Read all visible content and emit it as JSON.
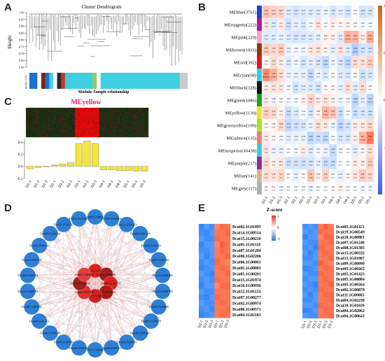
{
  "panel_labels": {
    "a": "A",
    "b": "B",
    "c": "C",
    "d": "D",
    "e": "E"
  },
  "panel_a": {
    "title": "Cluster Dendrogram",
    "ylabel": "Height",
    "yticks": [
      "1.00",
      "0.95",
      "0.90",
      "0.85",
      "0.80",
      "0.75",
      "0.70",
      "0.65",
      "0.60"
    ],
    "row_label": "Module colors",
    "xlabel": "Module-Sample relationship",
    "color_bar": [
      "#1e6fd0",
      "#1e6fd0",
      "#ffffff",
      "#7a2a12",
      "#1e6fd0",
      "#4bd0e8",
      "#ffffff",
      "#2b2b2b",
      "#c43a2a",
      "#3fcfe0",
      "#3fcfe0",
      "#3fcfe0",
      "#3fcfe0",
      "#3fcfe0",
      "#3fcfe0",
      "#3fcfe0",
      "#8ecf5a",
      "#ffffff",
      "#3fcfe0",
      "#3fcfe0",
      "#3fcfe0",
      "#3fcfe0",
      "#3fcfe0",
      "#3fcfe0",
      "#3fcfe0",
      "#3fcfe0",
      "#3fcfe0",
      "#3fcfe0",
      "#3fcfe0",
      "#3fcfe0",
      "#3fcfe0",
      "#3fcfe0",
      "#3fcfe0",
      "#3fcfe0",
      "#3fcfe0",
      "#3fcfe0",
      "#3fcfe0",
      "#3fcfe0",
      "#cccccc",
      "#cccccc"
    ]
  },
  "panel_b": {
    "modules": [
      "MEblue(3761)",
      "MEmagenta(222)",
      "MEpink(229)",
      "MEbrown(1931)",
      "MEred(392)",
      "MEcyan(68)",
      "MEblack(328)",
      "MEgreen(1086)",
      "MEyellow(1130)",
      "MEgreenyellow(199)",
      "MEsalmon(135)",
      "MEturquoise(10438)",
      "MEpurple(217)",
      "MEtan(141)",
      "MEgrey(117)"
    ],
    "module_colors": [
      "#1f3fd0",
      "#b2189a",
      "#f2a6d0",
      "#8a3a10",
      "#e01a1a",
      "#28d2e6",
      "#111111",
      "#1fa11f",
      "#f0e428",
      "#a6e622",
      "#f08070",
      "#40c8d8",
      "#8a2ea0",
      "#d8b48a",
      "#b0b0b0"
    ],
    "samples": [
      "D1-1",
      "D1-2",
      "D1-3",
      "D2-1",
      "D2-2",
      "D2-3",
      "D3-1",
      "D3-2",
      "D3-3",
      "D4-1",
      "D4-2",
      "D4-3",
      "D5-1",
      "D5-2",
      "D5-3"
    ],
    "scale_ticks": [
      "1",
      "0.5",
      "0",
      "-0.5",
      "-1"
    ],
    "values": [
      [
        0.39,
        0.31,
        0.27,
        -0.16,
        -0.22,
        -0.17,
        -0.17,
        -0.17,
        -0.09,
        -0.2,
        -0.12,
        -0.22,
        -0.03,
        -0.22,
        -0.2
      ],
      [
        0.16,
        -0.18,
        0.11,
        -0.23,
        -0.13,
        -0.17,
        -0.04,
        0.16,
        -0.03,
        0.11,
        0.07,
        0.09,
        -0.03,
        -0.05,
        -0.06
      ],
      [
        -0.17,
        -0.17,
        -0.13,
        -0.17,
        -0.22,
        -0.2,
        -0.17,
        -0.13,
        0.09,
        0.1,
        -0.17,
        0.5,
        0.46,
        0.1,
        0.5
      ],
      [
        0.33,
        0.24,
        0.33,
        -0.1,
        -0.06,
        -0.07,
        0.14,
        0.18,
        0.05,
        -0.14,
        0.18,
        -0.16,
        -0.4,
        -0.22,
        -0.23
      ],
      [
        -0.02,
        0.22,
        0.1,
        -0.16,
        -0.08,
        -0.21,
        -0.13,
        -0.2,
        -0.32,
        -0.07,
        -0.2,
        -0.32,
        0.22,
        0.18,
        0.31
      ],
      [
        0.74,
        0.49,
        0.2,
        -0.1,
        -0.12,
        -0.12,
        -0.31,
        -0.09,
        -0.17,
        0.02,
        -0.17,
        -0.18,
        0.04,
        -0.25,
        -0.18
      ],
      [
        0.12,
        0.17,
        0.13,
        -0.04,
        -0.21,
        -0.14,
        -0.17,
        -0.22,
        0.04,
        0.02,
        -0.12,
        0.2,
        -0.15,
        0.21,
        -0.02
      ],
      [
        0.12,
        -0.09,
        0.04,
        -0.07,
        -0.04,
        0.09,
        0.29,
        0.12,
        0.18,
        0.08,
        -0.07,
        -0.05,
        -0.34,
        -0.1,
        -0.34
      ],
      [
        0.3,
        0.24,
        0.07,
        -0.26,
        -0.16,
        -0.04,
        -0.2,
        0.08,
        0.48,
        0.36,
        -0.25,
        -0.03,
        -0.25,
        -0.2,
        -0.24
      ],
      [
        0.05,
        0.08,
        0.24,
        -0.31,
        -0.24,
        -0.19,
        -0.11,
        0.22,
        0.13,
        -0.08,
        -0.32,
        -0.2,
        0.13,
        0.13,
        0.24
      ],
      [
        0.13,
        0.05,
        -0.05,
        -0.12,
        -0.1,
        -0.1,
        -0.33,
        -0.25,
        -0.31,
        -0.01,
        -0.19,
        -0.18,
        0.11,
        0.47,
        0.82
      ],
      [
        0.17,
        -0.1,
        -0.09,
        -0.01,
        -0.05,
        0.12,
        -0.16,
        -0.05,
        -0.09,
        -0.29,
        -0.04,
        -0.01,
        -0.15,
        0.07,
        0.21
      ],
      [
        0.22,
        0.1,
        0.15,
        -0.22,
        -0.21,
        -0.23,
        -0.22,
        -0.1,
        -0.26,
        -0.26,
        0.01,
        -0.01,
        0.12,
        0.08,
        0.31
      ],
      [
        0.22,
        0.19,
        0.25,
        0.02,
        -0.11,
        0.03,
        0.38,
        0.08,
        0.28,
        0.02,
        -0.13,
        0.06,
        0.15,
        0.34,
        0.23
      ],
      [
        0.01,
        0.01,
        -0.05,
        0.02,
        -0.03,
        -0.03,
        -0.09,
        -0.01,
        -0.01,
        0.02,
        0.08,
        -0.04,
        0.01,
        -0.04,
        -0.03
      ]
    ],
    "pvalues": [
      [
        0.03,
        0.09,
        0.1,
        0.4,
        0.2,
        0.4,
        0.4,
        0.4,
        0.6,
        0.3,
        0.5,
        0.2,
        0.9,
        0.2,
        0.3
      ],
      [
        0.4,
        0.3,
        0.6,
        0.2,
        0.5,
        0.4,
        0.8,
        0.4,
        0.9,
        0.6,
        0.7,
        0.6,
        0.9,
        0.8,
        0.8
      ],
      [
        0.4,
        0.4,
        0.5,
        0.4,
        0.2,
        0.3,
        0.4,
        0.5,
        0.6,
        0.6,
        0.4,
        0.005,
        0.01,
        0.6,
        0.005
      ],
      [
        0.07,
        0.2,
        0.07,
        0.6,
        0.7,
        0.7,
        0.5,
        0.3,
        0.8,
        0.5,
        0.3,
        0.4,
        0.03,
        0.2,
        0.2
      ],
      [
        0.9,
        0.2,
        0.6,
        0.4,
        0.7,
        0.3,
        0.5,
        0.3,
        0.08,
        0.7,
        0.3,
        0.08,
        0.2,
        0.3,
        0.09
      ],
      [
        2e-06,
        0.006,
        0.3,
        0.6,
        0.5,
        0.5,
        0.09,
        0.6,
        0.4,
        0.9,
        0.4,
        0.3,
        0.8,
        0.2,
        0.3
      ],
      [
        0.5,
        0.4,
        0.5,
        0.8,
        0.2,
        0.5,
        0.4,
        0.2,
        0.8,
        0.9,
        0.5,
        0.3,
        0.4,
        0.3,
        0.9
      ],
      [
        0.5,
        0.6,
        0.8,
        0.7,
        0.8,
        0.6,
        0.1,
        0.5,
        0.3,
        0.7,
        0.7,
        0.8,
        0.06,
        0.6,
        0.06
      ],
      [
        0.1,
        0.2,
        0.7,
        0.2,
        0.4,
        0.8,
        0.3,
        0.7,
        0.006,
        0.05,
        0.2,
        0.9,
        0.2,
        0.3,
        0.2
      ],
      [
        0.8,
        0.7,
        0.2,
        0.09,
        0.2,
        0.3,
        0.6,
        0.2,
        0.5,
        0.7,
        0.08,
        0.3,
        0.5,
        0.5,
        0.2
      ],
      [
        0.5,
        0.8,
        0.8,
        0.5,
        0.6,
        0.6,
        0.07,
        0.2,
        0.09,
        0.9,
        0.3,
        0.3,
        0.6,
        0.008,
        3e-08
      ],
      [
        0.4,
        0.6,
        0.6,
        0.9,
        0.8,
        0.5,
        0.4,
        0.8,
        0.6,
        0.1,
        0.8,
        0.9,
        0.4,
        0.7,
        0.3
      ],
      [
        0.2,
        0.6,
        0.4,
        0.2,
        0.3,
        0.2,
        0.2,
        0.6,
        0.2,
        0.2,
        0.9,
        0.9,
        0.5,
        0.7,
        0.09
      ],
      [
        0.2,
        0.3,
        0.2,
        0.9,
        0.6,
        0.9,
        0.04,
        0.7,
        0.1,
        0.9,
        0.5,
        0.8,
        0.4,
        0.06,
        0.2
      ],
      [
        0.9,
        0.9,
        0.8,
        0.9,
        0.9,
        0.9,
        0.6,
        0.9,
        0.9,
        0.9,
        0.7,
        0.8,
        0.9,
        0.8,
        0.9
      ]
    ]
  },
  "panel_c": {
    "title": "MEyellow",
    "yticks": [
      "0.4",
      "0.2",
      "0.0",
      "-0.2"
    ],
    "samples": [
      "D1-1",
      "D1-2",
      "D1-3",
      "D2-1",
      "D2-2",
      "D2-3",
      "D3-1",
      "D3-2",
      "D3-3",
      "D4-1",
      "D4-2",
      "D4-3",
      "D5-1",
      "D5-2",
      "D5-3"
    ],
    "bar_values": [
      -0.04,
      -0.02,
      0.0,
      0.02,
      0.04,
      0.06,
      0.38,
      0.42,
      0.38,
      -0.06,
      -0.06,
      -0.07,
      -0.07,
      -0.08,
      -0.08
    ],
    "bar_color": "#f5e63a"
  },
  "panel_d": {
    "outer_nodes": [
      "Dcat01.1G00363",
      "Dcat06.1G00206",
      "Dcat13.1G00163",
      "Dcat04.1G01238",
      "Dcat09.1G00423",
      "Dcat09.1G00332",
      "Dcat10.1G00206",
      "Dcat10.1G00778",
      "Dcat09.1G00098",
      "Dcat08.1G00878",
      "Dcat09.1G00245",
      "Dcat09.1G00195",
      "Dcat16.1G00113",
      "Dcat13.1G00281",
      "Dcat08.1G00286",
      "Dcat05.1G00084",
      "Dcat01.1G00549",
      "Dcat04.1G01113",
      "Dcat07.1G00993",
      "Dcat12.1G00781",
      "Dcat04.1G00118",
      "Dcat12.1G00303",
      "Dcat01.1G00443",
      "Dcat05.1G00264",
      "Dcat07.1G00747",
      "Dcat11.1G00091"
    ],
    "inner_nodes": [
      "Dcat02.1G00169",
      "Dcat04.1G00248",
      "Dcat02.1G00974",
      "Dcat11.1G00862",
      "Dcat04.1G00050",
      "Dcat03.1G00393",
      "Dcat16.1G00210",
      "Dcat01.1G00088"
    ]
  },
  "panel_e": {
    "title": "Z-score",
    "scale_ticks": [
      "1",
      "0",
      "-1"
    ],
    "left": {
      "samples": [
        "D2-1",
        "D2-2",
        "D2-3",
        "D5-1",
        "D5-2",
        "D5-3"
      ],
      "genes": [
        "Dcat02.1G01095",
        "Dcat14.1G00514",
        "Dcat15.1G00210",
        "Dcat05.1G01118",
        "Dcat07.1G01204",
        "Dcat06.1G02206",
        "Dcat06.1G00061",
        "Dcat05.1G00083",
        "Dcat05.1G00281",
        "Dcat15.1G01974",
        "Dcat16.1G00936",
        "Dcat12.1G01153",
        "Dcat07.1G00277",
        "Dcat02.1G00974",
        "Dcat06.1G00571",
        "Dcat04.1G02183"
      ],
      "values": [
        [
          -1.2,
          -1.0,
          -1.1,
          0.9,
          1.1,
          1.0
        ],
        [
          -1.1,
          -1.2,
          -1.0,
          1.0,
          1.0,
          1.1
        ],
        [
          -1.0,
          -1.1,
          -1.1,
          1.1,
          1.0,
          1.0
        ],
        [
          -1.2,
          -1.0,
          -1.0,
          0.9,
          1.2,
          1.0
        ],
        [
          -1.1,
          -1.1,
          -1.0,
          1.0,
          1.1,
          1.0
        ],
        [
          -1.0,
          -1.2,
          -1.0,
          1.0,
          1.0,
          1.1
        ],
        [
          -1.1,
          -1.0,
          -1.1,
          1.1,
          1.0,
          0.9
        ],
        [
          -1.2,
          -1.1,
          -1.0,
          1.0,
          1.1,
          1.0
        ],
        [
          -1.0,
          -1.1,
          -1.2,
          1.0,
          1.0,
          1.1
        ],
        [
          -1.1,
          -1.0,
          -1.1,
          1.1,
          1.0,
          1.0
        ],
        [
          -1.2,
          -1.0,
          -1.0,
          0.9,
          1.1,
          1.1
        ],
        [
          -1.0,
          -1.1,
          -1.1,
          1.0,
          1.0,
          1.0
        ],
        [
          -1.1,
          -1.2,
          -1.0,
          1.1,
          1.0,
          1.0
        ],
        [
          -1.0,
          -1.1,
          -1.1,
          1.0,
          1.1,
          1.0
        ],
        [
          -1.1,
          -1.0,
          -1.2,
          1.0,
          1.0,
          1.1
        ],
        [
          -1.2,
          -1.1,
          -1.0,
          1.0,
          1.1,
          1.0
        ]
      ]
    },
    "right": {
      "samples": [
        "D2-1",
        "D2-2",
        "D2-3",
        "D3-1",
        "D3-2",
        "D3-3"
      ],
      "genes": [
        "Dcat05.1G01113",
        "Dcat19.1G00549",
        "Dcat18.1G00981",
        "Dcat07.1G01240",
        "Dcat08.1G01305",
        "Dcat15.1G00332",
        "Dcat13.1G01007",
        "Dcat09.1G00890",
        "Dcat05.1G00265",
        "Dcat05.1G01423",
        "Dcat05.1G00084",
        "Dcat05.1G00264",
        "Dcat02.1G00878",
        "Dcat11.1G00065",
        "Dcat04.1G02238",
        "Dcat10.1G01039",
        "Dcat04.1G02062",
        "Dcat04.1G00643"
      ],
      "values": [
        [
          -1.1,
          -1.0,
          -1.1,
          1.0,
          1.2,
          0.9
        ],
        [
          -1.0,
          -1.1,
          -1.0,
          1.1,
          1.0,
          1.0
        ],
        [
          -1.2,
          -1.0,
          -1.0,
          0.9,
          1.1,
          1.1
        ],
        [
          -1.0,
          -1.1,
          -1.1,
          1.0,
          1.0,
          1.1
        ],
        [
          -1.1,
          -1.0,
          -1.2,
          1.1,
          1.0,
          1.0
        ],
        [
          -1.0,
          -1.2,
          -1.0,
          1.0,
          1.1,
          1.0
        ],
        [
          -1.1,
          -1.1,
          -1.0,
          1.0,
          1.0,
          1.1
        ],
        [
          -1.0,
          -1.0,
          -1.1,
          1.2,
          1.0,
          0.9
        ],
        [
          -1.2,
          -1.1,
          -1.0,
          1.0,
          1.1,
          1.0
        ],
        [
          -1.0,
          -1.1,
          -1.1,
          1.1,
          1.0,
          1.0
        ],
        [
          -1.1,
          -1.0,
          -1.0,
          1.0,
          1.1,
          1.0
        ],
        [
          -1.0,
          -1.1,
          -1.2,
          1.0,
          1.0,
          1.2
        ],
        [
          -1.1,
          -1.0,
          -1.1,
          1.1,
          1.0,
          1.0
        ],
        [
          -1.0,
          -1.2,
          -1.0,
          1.0,
          1.1,
          1.1
        ],
        [
          -1.1,
          -1.1,
          -1.0,
          1.0,
          1.0,
          1.1
        ],
        [
          -1.0,
          -1.0,
          -1.1,
          1.1,
          1.0,
          1.0
        ],
        [
          -1.2,
          -1.1,
          -1.0,
          1.0,
          1.1,
          1.0
        ],
        [
          -1.0,
          -1.1,
          -1.1,
          1.0,
          1.0,
          1.1
        ]
      ]
    }
  },
  "chart_data": [
    {
      "type": "heatmap",
      "title": "",
      "rows": [
        "MEblue(3761)",
        "MEmagenta(222)",
        "MEpink(229)",
        "MEbrown(1931)",
        "MEred(392)",
        "MEcyan(68)",
        "MEblack(328)",
        "MEgreen(1086)",
        "MEyellow(1130)",
        "MEgreenyellow(199)",
        "MEsalmon(135)",
        "MEturquoise(10438)",
        "MEpurple(217)",
        "MEtan(141)",
        "MEgrey(117)"
      ],
      "columns": [
        "D1-1",
        "D1-2",
        "D1-3",
        "D2-1",
        "D2-2",
        "D2-3",
        "D3-1",
        "D3-2",
        "D3-3",
        "D4-1",
        "D4-2",
        "D4-3",
        "D5-1",
        "D5-2",
        "D5-3"
      ],
      "color_range": [
        -1,
        1
      ]
    },
    {
      "type": "bar",
      "title": "MEyellow",
      "categories": [
        "D1-1",
        "D1-2",
        "D1-3",
        "D2-1",
        "D2-2",
        "D2-3",
        "D3-1",
        "D3-2",
        "D3-3",
        "D4-1",
        "D4-2",
        "D4-3",
        "D5-1",
        "D5-2",
        "D5-3"
      ],
      "values": [
        -0.04,
        -0.02,
        0.0,
        0.02,
        0.04,
        0.06,
        0.38,
        0.42,
        0.38,
        -0.06,
        -0.06,
        -0.07,
        -0.07,
        -0.08,
        -0.08
      ],
      "ylim": [
        -0.2,
        0.45
      ]
    },
    {
      "type": "heatmap",
      "title": "Z-score",
      "color_range": [
        -1,
        1
      ]
    }
  ]
}
